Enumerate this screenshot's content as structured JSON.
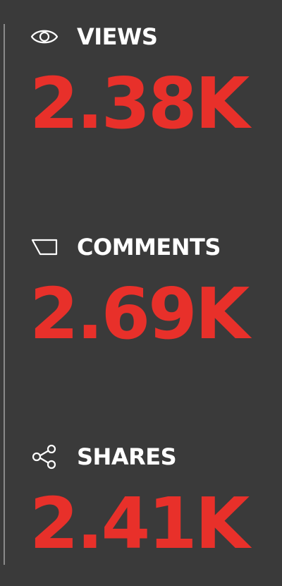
{
  "theme": {
    "background": "#3a3a3a",
    "label_color": "#ffffff",
    "value_color": "#e8302a",
    "divider_color": "#8a8a8a"
  },
  "stats": [
    {
      "id": "views",
      "icon": "eye-icon",
      "label": "VIEWS",
      "value": "2.38K"
    },
    {
      "id": "comments",
      "icon": "comment-icon",
      "label": "COMMENTS",
      "value": "2.69K"
    },
    {
      "id": "shares",
      "icon": "share-icon",
      "label": "SHARES",
      "value": "2.41K"
    }
  ]
}
